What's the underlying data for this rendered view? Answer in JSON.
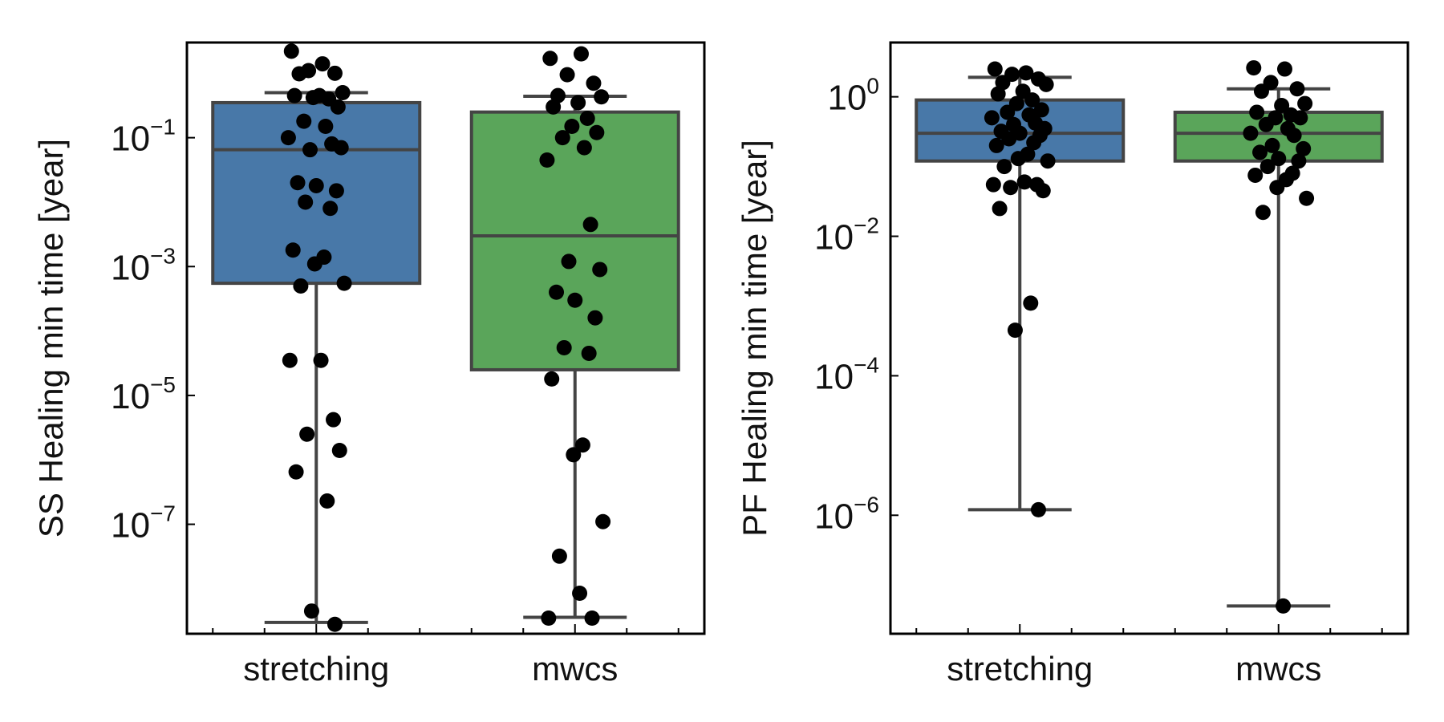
{
  "chart_data": [
    {
      "type": "box",
      "ylabel": "SS Healing min time [year]",
      "yscale": "log",
      "ylim": [
        2e-09,
        3
      ],
      "yticks": [
        {
          "value": 0.1,
          "base": "10",
          "exp": "−1"
        },
        {
          "value": 0.001,
          "base": "10",
          "exp": "−3"
        },
        {
          "value": 1e-05,
          "base": "10",
          "exp": "−5"
        },
        {
          "value": 1e-07,
          "base": "10",
          "exp": "−7"
        }
      ],
      "categories": [
        "stretching",
        "mwcs"
      ],
      "boxes": [
        {
          "category": "stretching",
          "color": "#4878a8",
          "q1": 0.00055,
          "median": 0.065,
          "q3": 0.35,
          "whisker_low": 3e-09,
          "whisker_high": 0.5
        },
        {
          "category": "mwcs",
          "color": "#5aa55a",
          "q1": 2.5e-05,
          "median": 0.003,
          "q3": 0.25,
          "whisker_low": 3.6e-09,
          "whisker_high": 0.44
        }
      ],
      "points": [
        {
          "category": "stretching",
          "values": [
            2.2,
            1.4,
            1.1,
            1.0,
            0.98,
            0.5,
            0.45,
            0.45,
            0.4,
            0.42,
            0.3,
            0.18,
            0.15,
            0.1,
            0.08,
            0.065,
            0.07,
            0.02,
            0.018,
            0.015,
            0.01,
            0.008,
            0.0018,
            0.0014,
            0.0011,
            0.00055,
            0.0005,
            3.5e-05,
            3.5e-05,
            4.2e-06,
            2.5e-06,
            1.4e-06,
            6.5e-07,
            2.3e-07,
            4.5e-09,
            2.8e-09
          ]
        },
        {
          "category": "mwcs",
          "values": [
            1.7,
            2.0,
            0.95,
            0.7,
            0.45,
            0.43,
            0.35,
            0.3,
            0.2,
            0.15,
            0.12,
            0.1,
            0.07,
            0.045,
            0.0045,
            0.0012,
            0.0009,
            0.0004,
            0.0003,
            0.00016,
            5.5e-05,
            4.5e-05,
            1.8e-05,
            1.7e-06,
            1.2e-06,
            1.1e-07,
            3.2e-08,
            8.5e-09,
            3.5e-09,
            3.5e-09
          ]
        }
      ]
    },
    {
      "type": "box",
      "ylabel": "PF Healing min time [year]",
      "yscale": "log",
      "ylim": [
        2e-08,
        6
      ],
      "yticks": [
        {
          "value": 1,
          "base": "10",
          "exp": "0"
        },
        {
          "value": 0.01,
          "base": "10",
          "exp": "−2"
        },
        {
          "value": 0.0001,
          "base": "10",
          "exp": "−4"
        },
        {
          "value": 1e-06,
          "base": "10",
          "exp": "−6"
        }
      ],
      "categories": [
        "stretching",
        "mwcs"
      ],
      "boxes": [
        {
          "category": "stretching",
          "color": "#4878a8",
          "q1": 0.12,
          "median": 0.3,
          "q3": 0.9,
          "whisker_low": 1.2e-06,
          "whisker_high": 1.9
        },
        {
          "category": "mwcs",
          "color": "#5aa55a",
          "q1": 0.12,
          "median": 0.3,
          "q3": 0.6,
          "whisker_low": 5e-08,
          "whisker_high": 1.3
        }
      ],
      "points": [
        {
          "category": "stretching",
          "values": [
            2.5,
            2.2,
            2.1,
            1.8,
            1.6,
            1.5,
            1.2,
            1.1,
            0.9,
            0.8,
            0.65,
            0.6,
            0.55,
            0.5,
            0.42,
            0.4,
            0.35,
            0.32,
            0.3,
            0.28,
            0.25,
            0.22,
            0.2,
            0.15,
            0.13,
            0.12,
            0.1,
            0.06,
            0.055,
            0.055,
            0.05,
            0.045,
            0.025,
            0.0011,
            0.00045,
            1.2e-06
          ]
        },
        {
          "category": "mwcs",
          "values": [
            2.6,
            2.5,
            1.6,
            1.3,
            1.2,
            0.8,
            0.75,
            0.6,
            0.55,
            0.5,
            0.5,
            0.4,
            0.35,
            0.3,
            0.28,
            0.2,
            0.18,
            0.16,
            0.13,
            0.12,
            0.1,
            0.08,
            0.075,
            0.065,
            0.05,
            0.035,
            0.022,
            5e-08
          ]
        }
      ]
    }
  ]
}
